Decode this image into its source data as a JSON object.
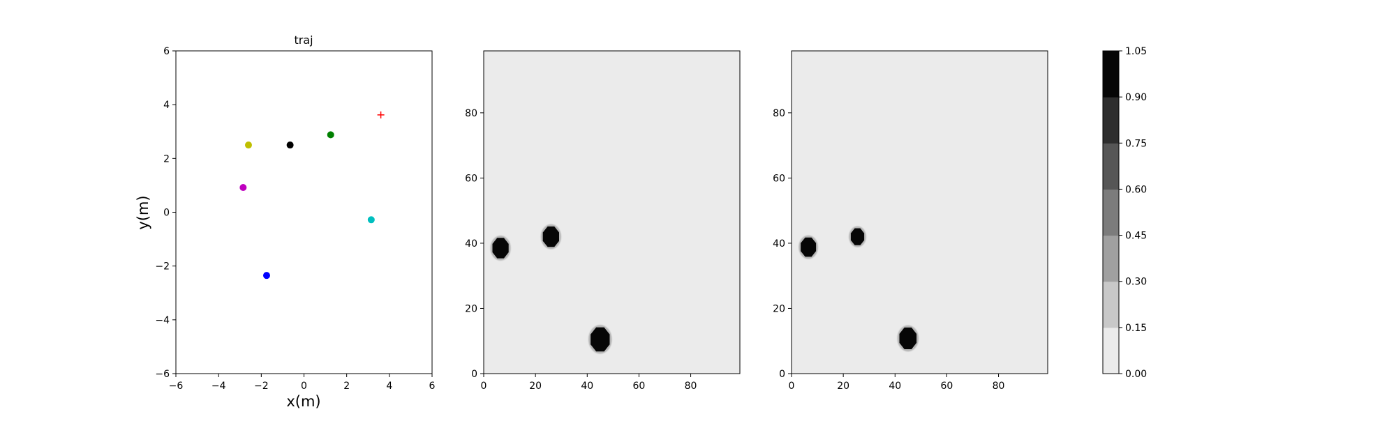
{
  "chart_data": [
    {
      "type": "scatter",
      "title": "traj",
      "xlabel": "x(m)",
      "ylabel": "y(m)",
      "xlim": [
        -6,
        6
      ],
      "ylim": [
        -6,
        6
      ],
      "xticks": [
        -6,
        -4,
        -2,
        0,
        2,
        4,
        6
      ],
      "yticks": [
        -6,
        -4,
        -2,
        0,
        2,
        4,
        6
      ],
      "tick_labels_x": [
        "−6",
        "−4",
        "−2",
        "0",
        "2",
        "4",
        "6"
      ],
      "tick_labels_y": [
        "−6",
        "−4",
        "−2",
        "0",
        "2",
        "4",
        "6"
      ],
      "grid": false,
      "points": [
        {
          "x": -2.6,
          "y": 2.5,
          "color": "#bfbf00",
          "marker": "circle"
        },
        {
          "x": -0.65,
          "y": 2.5,
          "color": "#000000",
          "marker": "circle"
        },
        {
          "x": 1.25,
          "y": 2.88,
          "color": "#008000",
          "marker": "circle"
        },
        {
          "x": -2.85,
          "y": 0.92,
          "color": "#bf00bf",
          "marker": "circle"
        },
        {
          "x": 3.15,
          "y": -0.28,
          "color": "#00bfbf",
          "marker": "circle"
        },
        {
          "x": -1.75,
          "y": -2.35,
          "color": "#0000ff",
          "marker": "circle"
        },
        {
          "x": 3.6,
          "y": 3.62,
          "color": "#ff0000",
          "marker": "plus"
        }
      ]
    },
    {
      "type": "heatmap",
      "xlim": [
        0,
        99
      ],
      "ylim": [
        0,
        99
      ],
      "xticks": [
        0,
        20,
        40,
        60,
        80
      ],
      "yticks": [
        0,
        20,
        40,
        60,
        80
      ],
      "tick_labels_x": [
        "0",
        "20",
        "40",
        "60",
        "80"
      ],
      "tick_labels_y": [
        "0",
        "20",
        "40",
        "60",
        "80"
      ],
      "background_value": 0.0,
      "blobs": [
        {
          "x": 6.5,
          "y": 38.5,
          "r": 3.4,
          "value": 1.0
        },
        {
          "x": 26,
          "y": 42,
          "r": 3.4,
          "value": 1.0
        },
        {
          "x": 45,
          "y": 10.5,
          "r": 4.0,
          "value": 1.0
        }
      ]
    },
    {
      "type": "heatmap",
      "xlim": [
        0,
        99
      ],
      "ylim": [
        0,
        99
      ],
      "xticks": [
        0,
        20,
        40,
        60,
        80
      ],
      "yticks": [
        0,
        20,
        40,
        60,
        80
      ],
      "tick_labels_x": [
        "0",
        "20",
        "40",
        "60",
        "80"
      ],
      "tick_labels_y": [
        "0",
        "20",
        "40",
        "60",
        "80"
      ],
      "background_value": 0.0,
      "blobs": [
        {
          "x": 6.5,
          "y": 38.8,
          "r": 3.2,
          "value": 1.0
        },
        {
          "x": 25.5,
          "y": 42,
          "r": 2.8,
          "value": 1.0
        },
        {
          "x": 45,
          "y": 10.8,
          "r": 3.6,
          "value": 1.0
        }
      ]
    }
  ],
  "colorbar": {
    "levels": [
      "0.00",
      "0.15",
      "0.30",
      "0.45",
      "0.60",
      "0.75",
      "0.90",
      "1.05"
    ],
    "colors": [
      "#ebebeb",
      "#c8c8c8",
      "#a0a0a0",
      "#7c7c7c",
      "#565656",
      "#2e2e2e",
      "#060606"
    ]
  }
}
